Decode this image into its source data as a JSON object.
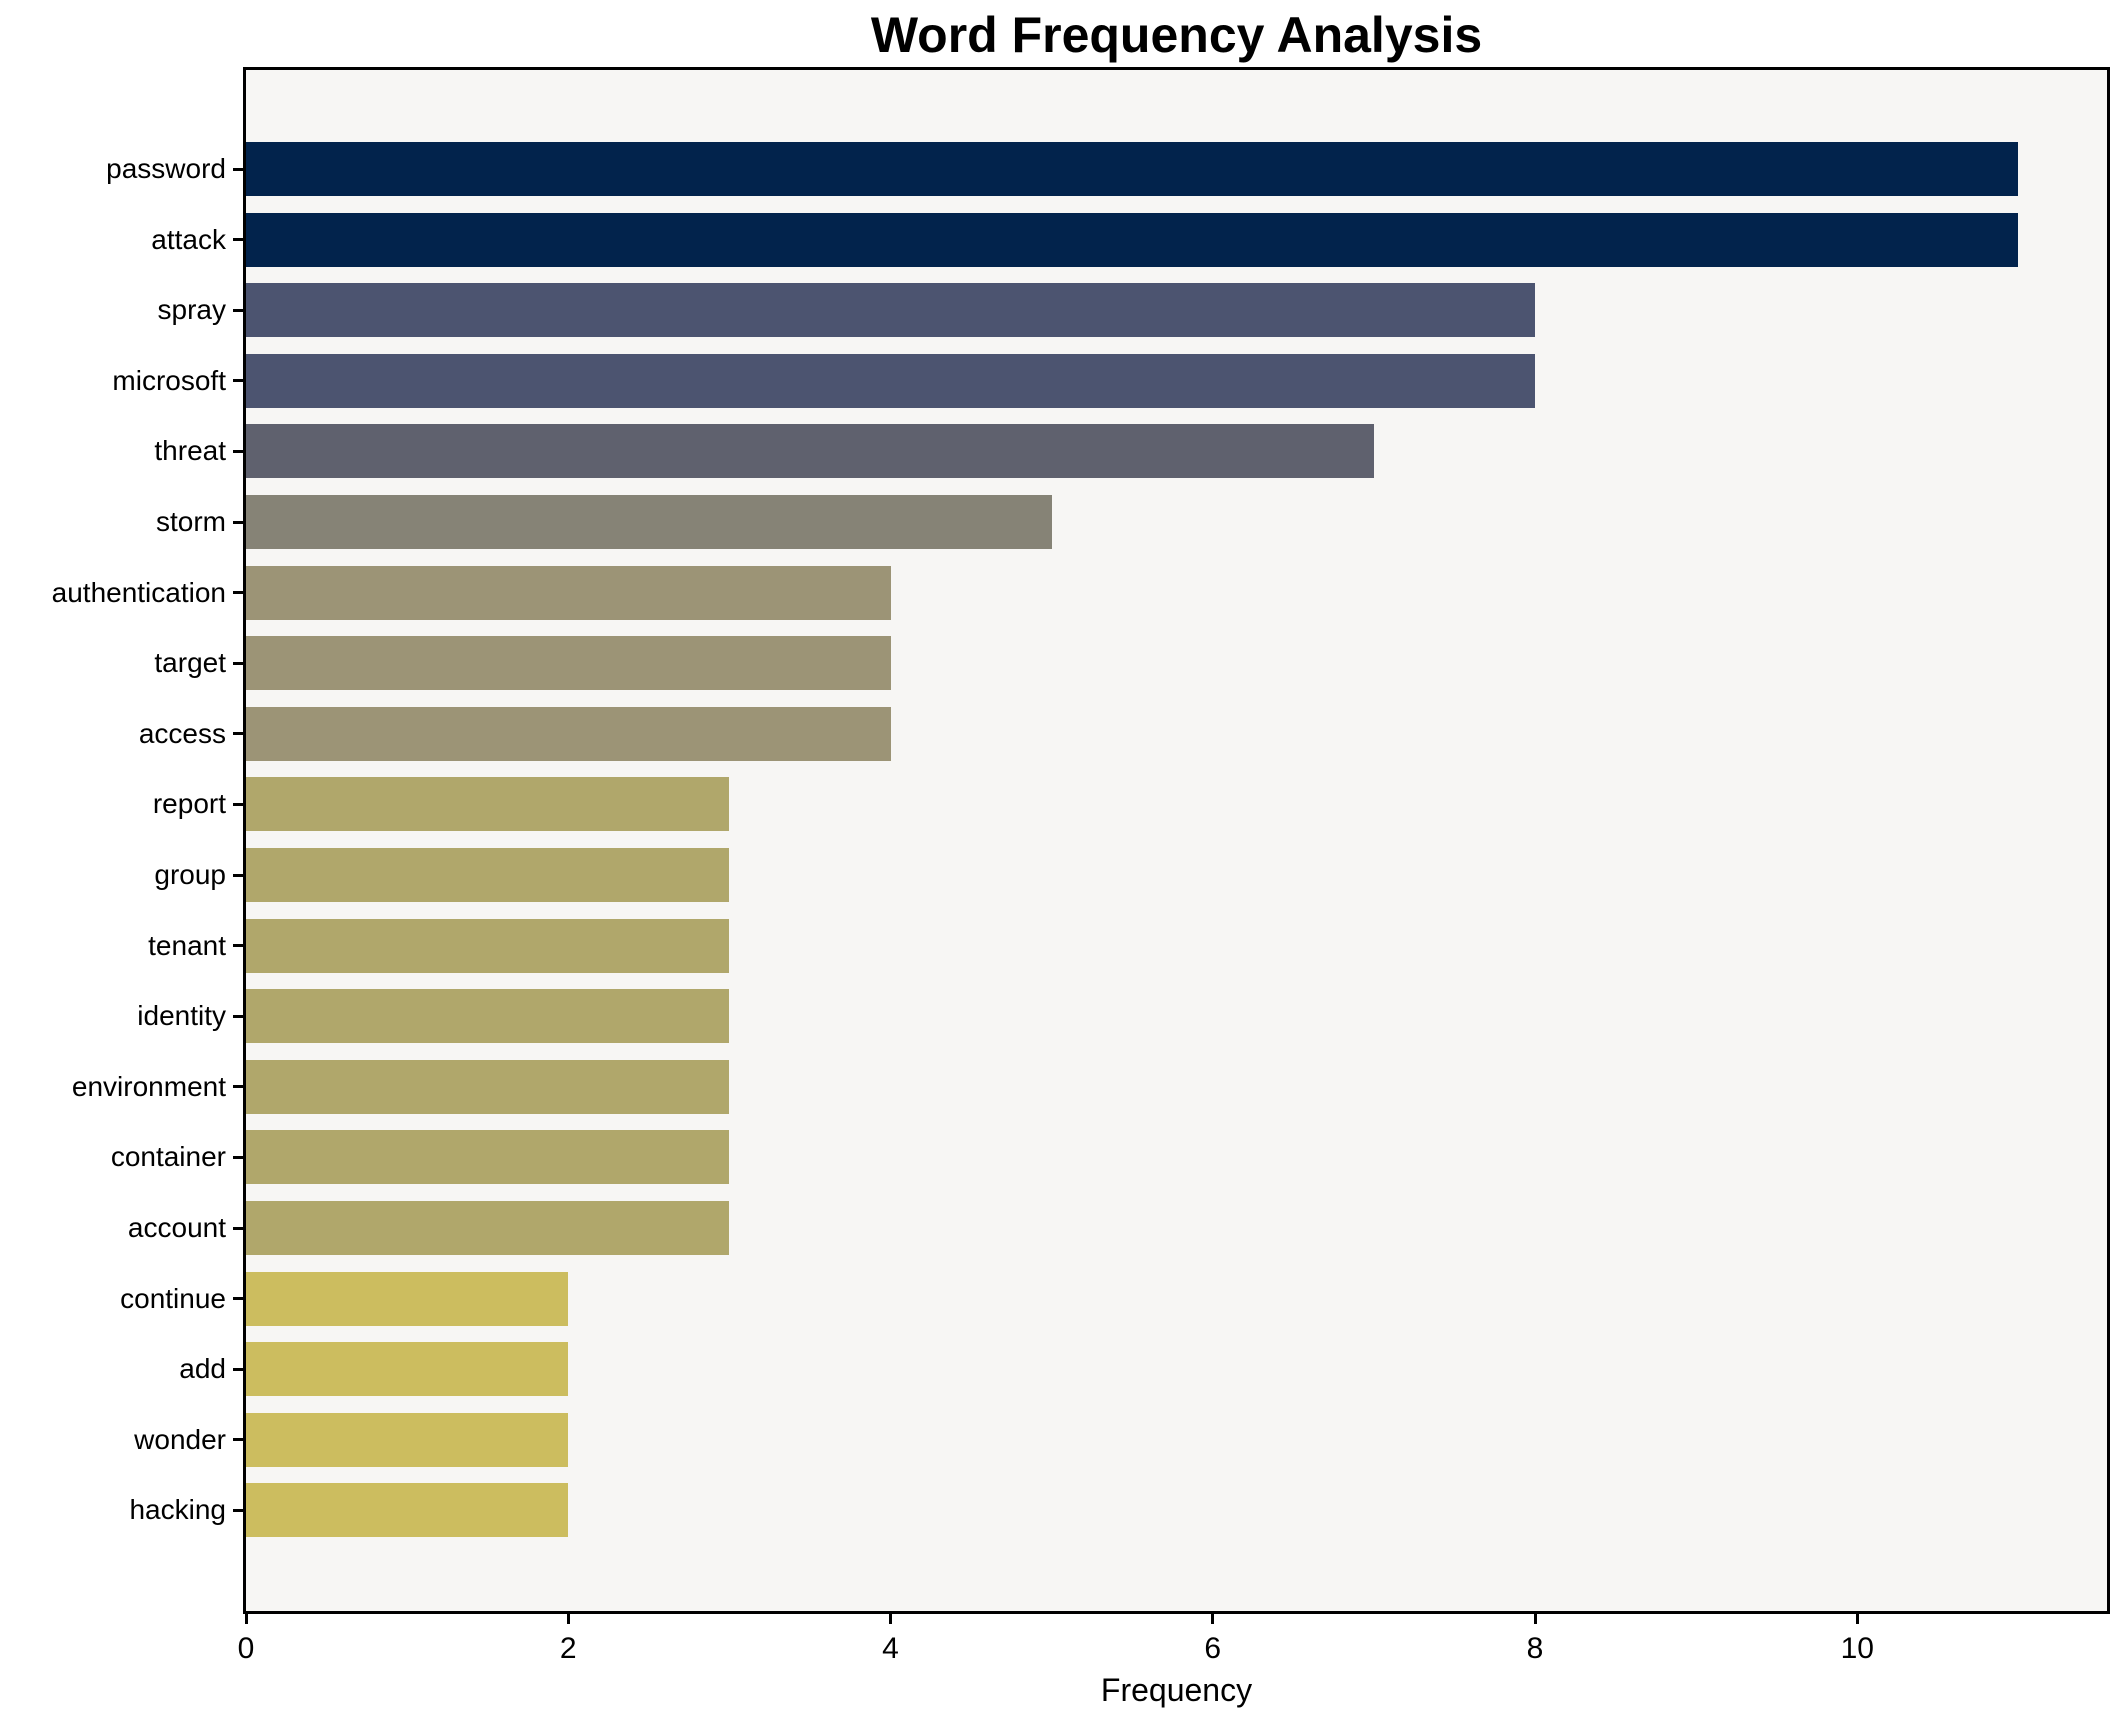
{
  "title": "Word Frequency Analysis",
  "chart_data": {
    "type": "bar",
    "orientation": "horizontal",
    "title": "Word Frequency Analysis",
    "xlabel": "Frequency",
    "ylabel": "",
    "categories": [
      "password",
      "attack",
      "spray",
      "microsoft",
      "threat",
      "storm",
      "authentication",
      "target",
      "access",
      "report",
      "group",
      "tenant",
      "identity",
      "environment",
      "container",
      "account",
      "continue",
      "add",
      "wonder",
      "hacking"
    ],
    "values": [
      11,
      11,
      8,
      8,
      7,
      5,
      4,
      4,
      4,
      3,
      3,
      3,
      3,
      3,
      3,
      3,
      2,
      2,
      2,
      2
    ],
    "bar_colors": [
      "#02234c",
      "#02234c",
      "#4c5470",
      "#4c5470",
      "#5f616e",
      "#868376",
      "#9c9476",
      "#9c9476",
      "#9c9476",
      "#b0a76b",
      "#b0a76b",
      "#b0a76b",
      "#b0a76b",
      "#b0a76b",
      "#b0a76b",
      "#b0a76b",
      "#ccbd5f",
      "#ccbd5f",
      "#ccbd5f",
      "#ccbd5f"
    ],
    "xlim": [
      0,
      11.55
    ],
    "xticks": [
      0,
      2,
      4,
      6,
      8,
      10
    ],
    "grid": false,
    "legend": null,
    "colors": {
      "plot_background": "#f7f6f4",
      "figure_background": "#ffffff",
      "spine": "#000000",
      "text": "#000000"
    }
  }
}
